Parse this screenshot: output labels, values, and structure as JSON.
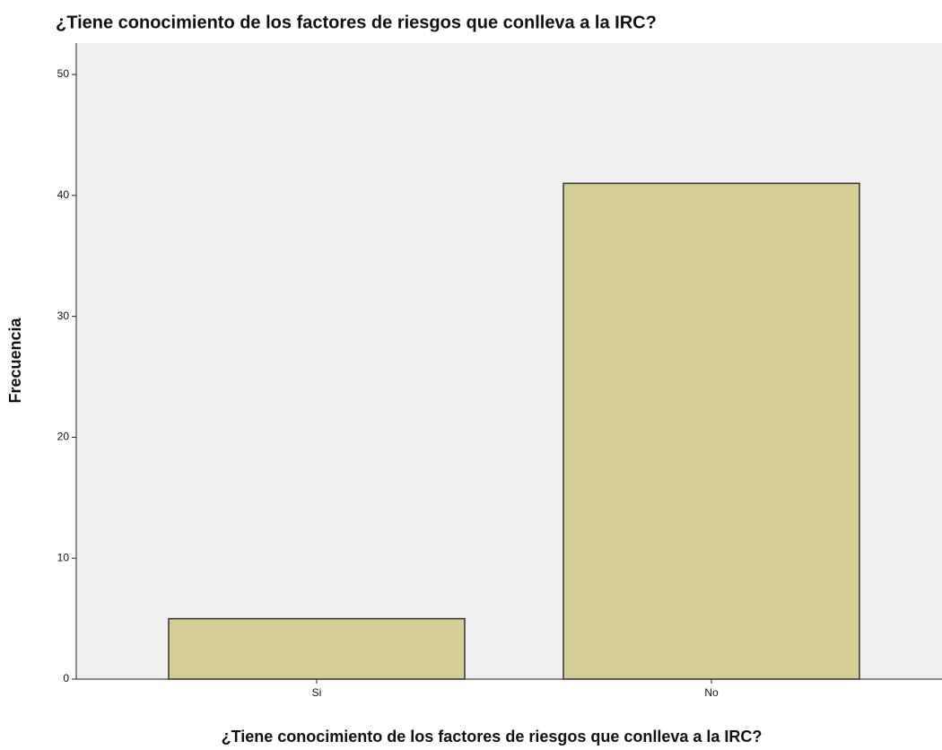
{
  "chart_data": {
    "type": "bar",
    "title": "¿Tiene conocimiento de los factores de riesgos que conlleva a la IRC?",
    "x_label": "¿Tiene conocimiento de los factores de riesgos que conlleva a la IRC?",
    "y_label": "Frecuencia",
    "categories": [
      "Si",
      "No"
    ],
    "values": [
      5,
      41
    ],
    "color": "#d3cd96",
    "ylim": [
      0,
      52.6
    ],
    "yticks": [
      0,
      10,
      20,
      30,
      40,
      50
    ],
    "grid": false
  }
}
